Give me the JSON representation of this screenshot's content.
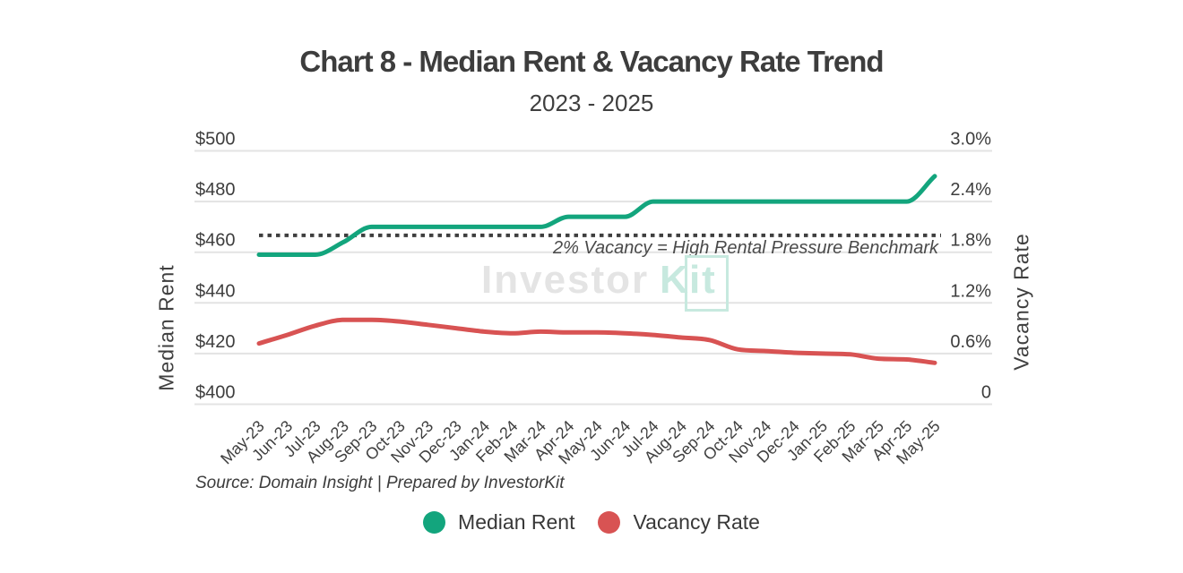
{
  "chart_data": {
    "type": "line",
    "title": "Chart 8 - Median Rent & Vacancy Rate Trend",
    "subtitle": "2023 - 2025",
    "categories": [
      "May-23",
      "Jun-23",
      "Jul-23",
      "Aug-23",
      "Sep-23",
      "Oct-23",
      "Nov-23",
      "Dec-23",
      "Jan-24",
      "Feb-24",
      "Mar-24",
      "Apr-24",
      "May-24",
      "Jun-24",
      "Jul-24",
      "Aug-24",
      "Sep-24",
      "Oct-24",
      "Nov-24",
      "Dec-24",
      "Jan-25",
      "Feb-25",
      "Mar-25",
      "Apr-25",
      "May-25"
    ],
    "series": [
      {
        "name": "Median Rent",
        "axis": "left",
        "color": "#13a57d",
        "values": [
          459,
          459,
          459,
          464,
          470,
          470,
          470,
          470,
          470,
          470,
          470,
          474,
          474,
          474,
          480,
          480,
          480,
          480,
          480,
          480,
          480,
          480,
          480,
          480,
          490
        ]
      },
      {
        "name": "Vacancy Rate",
        "axis": "right",
        "color": "#d85353",
        "values": [
          0.72,
          0.82,
          0.93,
          1.0,
          1.0,
          0.98,
          0.94,
          0.9,
          0.86,
          0.84,
          0.86,
          0.85,
          0.85,
          0.84,
          0.82,
          0.79,
          0.76,
          0.65,
          0.63,
          0.61,
          0.6,
          0.59,
          0.54,
          0.53,
          0.49
        ]
      }
    ],
    "left_axis": {
      "title": "Median Rent",
      "range": [
        400,
        500
      ],
      "tick_values": [
        400,
        420,
        440,
        460,
        480,
        500
      ],
      "tick_labels": [
        "$400",
        "$420",
        "$440",
        "$460",
        "$480",
        "$500"
      ]
    },
    "right_axis": {
      "title": "Vacancy Rate",
      "range": [
        0,
        3
      ],
      "tick_values": [
        0,
        0.6,
        1.2,
        1.8,
        2.4,
        3.0
      ],
      "tick_labels": [
        "0",
        "0.6%",
        "1.2%",
        "1.8%",
        "2.4%",
        "3.0%"
      ]
    },
    "benchmark": {
      "value": 2.0,
      "axis": "right",
      "style": "dotted",
      "label": "2% Vacancy = High Rental Pressure Benchmark",
      "color": "#3f3f3f"
    },
    "grid": true,
    "legend_position": "bottom",
    "gridline_color": "#e3e3e3"
  },
  "watermark": {
    "part1": "Investor",
    "part2": "K",
    "part3": "it"
  },
  "source_note": "Source: Domain Insight | Prepared by InvestorKit"
}
